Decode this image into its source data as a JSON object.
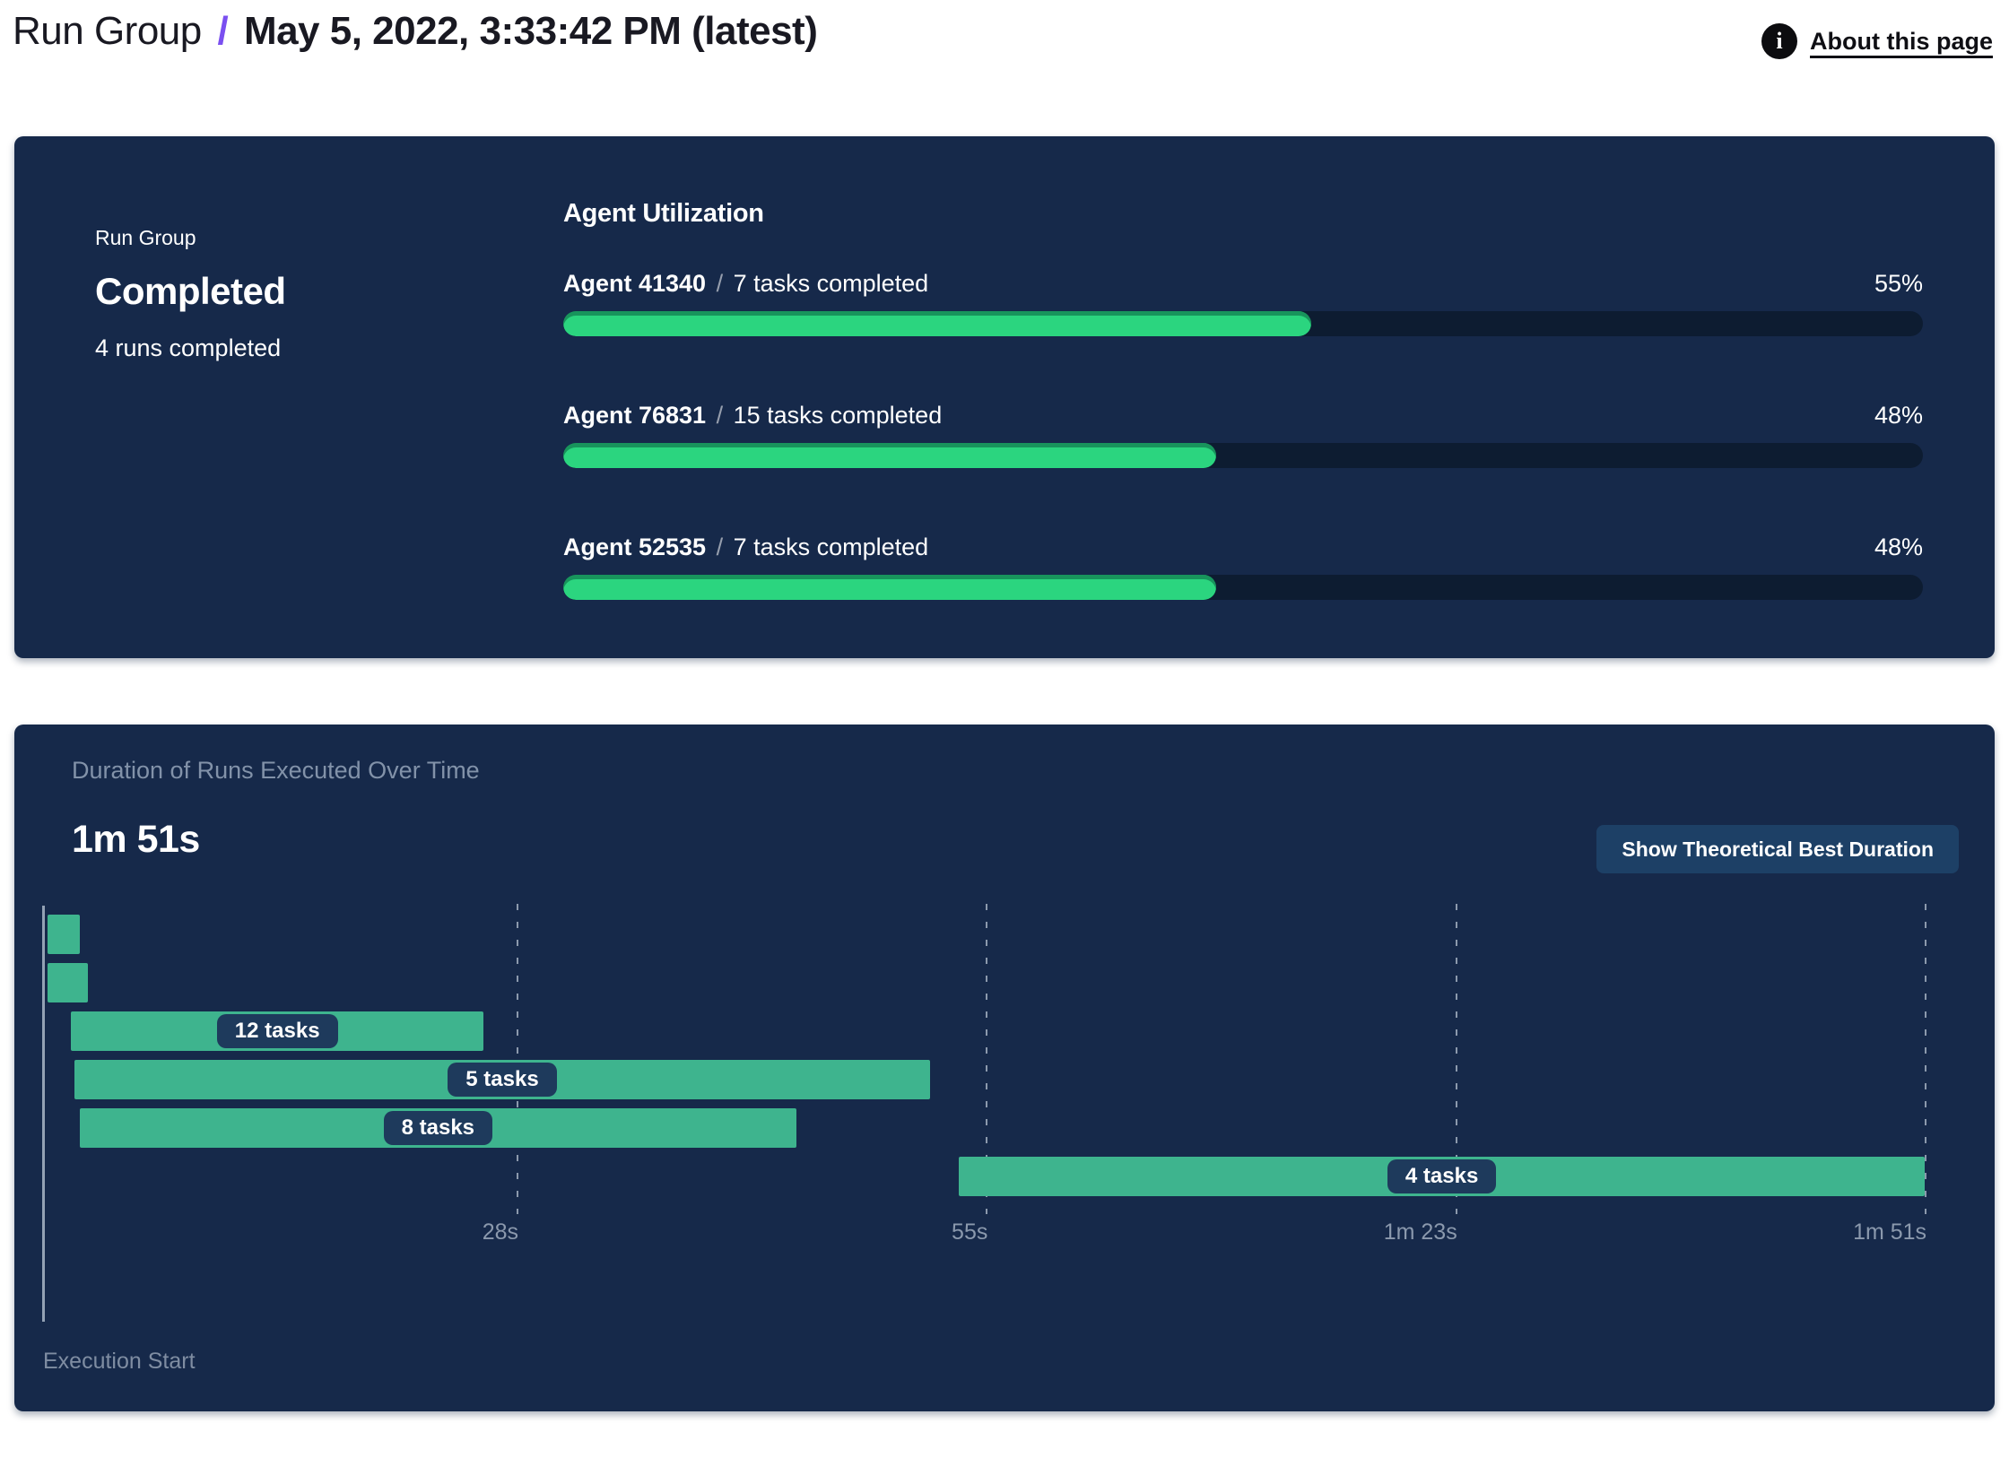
{
  "header": {
    "breadcrumb": "Run Group",
    "slash": "/",
    "title": "May 5, 2022, 3:33:42 PM (latest)",
    "about_label": "About this page",
    "info_glyph": "i"
  },
  "status_card": {
    "label": "Run Group",
    "status": "Completed",
    "runs_summary": "4 runs completed",
    "utilization": {
      "title": "Agent Utilization",
      "separator": "/",
      "agents": [
        {
          "name": "Agent 41340",
          "tasks": "7 tasks completed",
          "percent_label": "55%",
          "percent": 55
        },
        {
          "name": "Agent 76831",
          "tasks": "15 tasks completed",
          "percent_label": "48%",
          "percent": 48
        },
        {
          "name": "Agent 52535",
          "tasks": "7 tasks completed",
          "percent_label": "48%",
          "percent": 48
        }
      ]
    }
  },
  "duration_card": {
    "title": "Duration of Runs Executed Over Time",
    "total_duration": "1m 51s",
    "button_label": "Show Theoretical Best Duration",
    "execution_start_label": "Execution Start"
  },
  "chart_data": {
    "type": "gantt",
    "title": "Duration of Runs Executed Over Time",
    "total_duration_label": "1m 51s",
    "x_range_seconds": [
      0,
      111
    ],
    "x_ticks": [
      {
        "label": "28s",
        "seconds": 27.75
      },
      {
        "label": "55s",
        "seconds": 55.5
      },
      {
        "label": "1m 23s",
        "seconds": 83.25
      },
      {
        "label": "1m 51s",
        "seconds": 111
      }
    ],
    "bars": [
      {
        "label": "",
        "start_s": 0,
        "end_s": 1.9
      },
      {
        "label": "",
        "start_s": 0,
        "end_s": 2.4
      },
      {
        "label": "12 tasks",
        "start_s": 1.4,
        "end_s": 25.8
      },
      {
        "label": "5 tasks",
        "start_s": 1.6,
        "end_s": 52.2
      },
      {
        "label": "8 tasks",
        "start_s": 1.9,
        "end_s": 44.3
      },
      {
        "label": "4 tasks",
        "start_s": 53.9,
        "end_s": 111
      }
    ],
    "axis_label": "Execution Start",
    "grid": "dashed-vertical",
    "bar_color": "#3eb48e"
  },
  "colors": {
    "card_bg": "#16294a",
    "progress_fill": "#2bd57f",
    "progress_track": "#0d1c31",
    "gantt_bar": "#3eb48e",
    "accent_purple": "#7a4ff0",
    "button_bg": "#1d4066",
    "muted_text": "#8292a9"
  }
}
